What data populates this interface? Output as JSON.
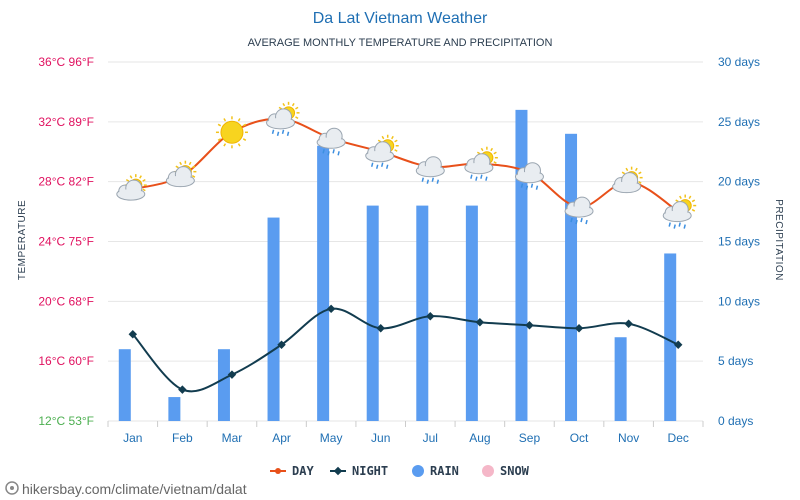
{
  "chart_data": {
    "type": "line+bar",
    "title": "Da Lat Vietnam Weather",
    "subtitle": "AVERAGE MONTHLY TEMPERATURE AND PRECIPITATION",
    "categories": [
      "Jan",
      "Feb",
      "Mar",
      "Apr",
      "May",
      "Jun",
      "Jul",
      "Aug",
      "Sep",
      "Oct",
      "Nov",
      "Dec"
    ],
    "series": [
      {
        "name": "DAY",
        "axis": "temperature",
        "unit": "°C",
        "color": "#e8501a",
        "values": [
          27.5,
          28.4,
          31.3,
          32.2,
          30.9,
          30.0,
          29.0,
          29.2,
          28.6,
          26.3,
          28.0,
          26.0
        ]
      },
      {
        "name": "NIGHT",
        "axis": "temperature",
        "unit": "°C",
        "color": "#123c4f",
        "values": [
          17.8,
          14.1,
          15.1,
          17.1,
          19.5,
          18.2,
          19.0,
          18.6,
          18.4,
          18.2,
          18.5,
          17.1
        ]
      },
      {
        "name": "RAIN",
        "axis": "precipitation",
        "unit": "days",
        "color": "#5a9cf0",
        "values": [
          6,
          2,
          6,
          17,
          23,
          18,
          18,
          18,
          26,
          24,
          7,
          14
        ]
      },
      {
        "name": "SNOW",
        "axis": "precipitation",
        "unit": "days",
        "color": "#f5b7c8",
        "values": [
          0,
          0,
          0,
          0,
          0,
          0,
          0,
          0,
          0,
          0,
          0,
          0
        ]
      }
    ],
    "weather_icons": [
      "partly-sunny-icon",
      "partly-sunny-icon",
      "sun-icon",
      "cloud-rain-sun-icon",
      "cloud-rain-icon",
      "cloud-rain-sun-icon",
      "cloud-rain-icon",
      "cloud-rain-sun-icon",
      "cloud-rain-icon",
      "cloud-rain-icon",
      "partly-sunny-icon",
      "cloud-rain-sun-icon"
    ],
    "left_axis": {
      "title": "TEMPERATURE",
      "range": [
        12,
        36
      ],
      "ticks": [
        {
          "value": 36,
          "label": "36°C 96°F",
          "color": "#e0115f"
        },
        {
          "value": 32,
          "label": "32°C 89°F",
          "color": "#e0115f"
        },
        {
          "value": 28,
          "label": "28°C 82°F",
          "color": "#e0115f"
        },
        {
          "value": 24,
          "label": "24°C 75°F",
          "color": "#e0115f"
        },
        {
          "value": 20,
          "label": "20°C 68°F",
          "color": "#e0115f"
        },
        {
          "value": 16,
          "label": "16°C 60°F",
          "color": "#e0115f"
        },
        {
          "value": 12,
          "label": "12°C 53°F",
          "color": "#4caf50"
        }
      ]
    },
    "right_axis": {
      "title": "PRECIPITATION",
      "range": [
        0,
        30
      ],
      "ticks": [
        {
          "value": 30,
          "label": "30 days"
        },
        {
          "value": 25,
          "label": "25 days"
        },
        {
          "value": 20,
          "label": "20 days"
        },
        {
          "value": 15,
          "label": "15 days"
        },
        {
          "value": 10,
          "label": "10 days"
        },
        {
          "value": 5,
          "label": "5 days"
        },
        {
          "value": 0,
          "label": "0 days"
        }
      ]
    },
    "legend": [
      {
        "name": "DAY",
        "color": "#e8501a",
        "marker": "line-dot"
      },
      {
        "name": "NIGHT",
        "color": "#123c4f",
        "marker": "line-diamond"
      },
      {
        "name": "RAIN",
        "color": "#5a9cf0",
        "marker": "circle"
      },
      {
        "name": "SNOW",
        "color": "#f5b7c8",
        "marker": "circle"
      }
    ],
    "grid": true
  },
  "source": "hikersbay.com/climate/vietnam/dalat",
  "colors": {
    "axis_right": "#1f6fb3",
    "month_label": "#1f6fb3",
    "grid": "#e6e6e6"
  }
}
